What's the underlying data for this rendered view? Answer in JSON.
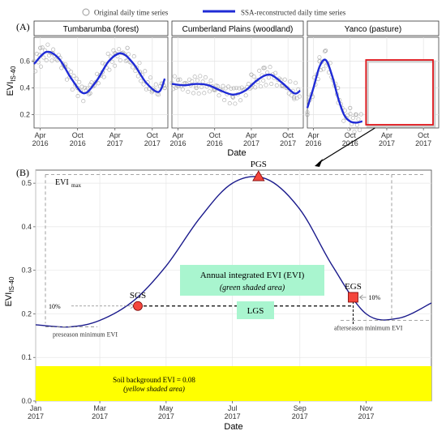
{
  "chart_data": [
    {
      "panel_label": "(A)",
      "type": "scatter",
      "legend": {
        "placement": "top",
        "entries": [
          {
            "label": "Original daily time series",
            "symbol": "open-circle",
            "color": "#b0b0b0"
          },
          {
            "label": "SSA-reconstructed daily time series",
            "symbol": "line",
            "color": "#1f2bd6"
          }
        ]
      },
      "ylabel": "EVI",
      "ylabel_sub": "IS-40",
      "xlabel": "Date",
      "ylim": [
        0.1,
        0.78
      ],
      "yticks": [
        0.2,
        0.4,
        0.6
      ],
      "xticks": [
        "Apr\n2016",
        "Oct\n2016",
        "Apr\n2017",
        "Oct\n2017"
      ],
      "grid": true,
      "facets": [
        {
          "title": "Tumbarumba (forest)",
          "reconstructed": {
            "x": [
              "2016-03",
              "2016-05",
              "2016-07",
              "2016-09",
              "2016-11",
              "2017-01",
              "2017-03",
              "2017-05",
              "2017-07",
              "2017-09",
              "2017-11",
              "2017-12"
            ],
            "y": [
              0.58,
              0.67,
              0.62,
              0.47,
              0.36,
              0.45,
              0.6,
              0.66,
              0.58,
              0.44,
              0.37,
              0.47
            ]
          },
          "observed_sample": {
            "x": [
              "2016-04",
              "2016-06",
              "2016-08",
              "2016-10",
              "2016-12",
              "2017-02",
              "2017-04",
              "2017-06",
              "2017-08",
              "2017-10",
              "2017-12"
            ],
            "y": [
              0.7,
              0.66,
              0.56,
              0.4,
              0.36,
              0.52,
              0.66,
              0.7,
              0.52,
              0.38,
              0.4
            ]
          }
        },
        {
          "title": "Cumberland Plains (woodland)",
          "reconstructed": {
            "x": [
              "2016-03",
              "2016-05",
              "2016-07",
              "2016-09",
              "2016-11",
              "2017-01",
              "2017-03",
              "2017-05",
              "2017-07",
              "2017-09",
              "2017-11",
              "2017-12"
            ],
            "y": [
              0.43,
              0.42,
              0.43,
              0.42,
              0.38,
              0.35,
              0.38,
              0.46,
              0.5,
              0.44,
              0.36,
              0.38
            ]
          },
          "observed_sample": {
            "x": [
              "2016-04",
              "2016-07",
              "2016-10",
              "2017-01",
              "2017-04",
              "2017-06",
              "2017-09",
              "2017-11"
            ],
            "y": [
              0.46,
              0.4,
              0.39,
              0.33,
              0.5,
              0.55,
              0.42,
              0.33
            ]
          }
        },
        {
          "title": "Yanco (pasture)",
          "reconstructed": {
            "x": [
              "2016-03",
              "2016-04",
              "2016-05",
              "2016-06",
              "2016-07",
              "2016-08",
              "2016-09",
              "2016-10",
              "2016-11",
              "2016-12"
            ],
            "y": [
              0.25,
              0.4,
              0.56,
              0.61,
              0.5,
              0.33,
              0.2,
              0.15,
              0.14,
              0.15
            ]
          },
          "observed_sample": {
            "x": [
              "2016-03",
              "2016-05",
              "2016-06",
              "2016-08",
              "2016-10",
              "2016-11"
            ],
            "y": [
              0.2,
              0.6,
              0.68,
              0.4,
              0.25,
              0.2
            ]
          }
        }
      ]
    },
    {
      "panel_label": "(B)",
      "type": "line",
      "title": "",
      "xlabel": "Date",
      "ylabel": "EVI",
      "ylabel_sub": "IS-40",
      "ylim": [
        0.0,
        0.53
      ],
      "yticks": [
        0.0,
        0.1,
        0.2,
        0.3,
        0.4,
        0.5
      ],
      "xticks": [
        "Jan\n2017",
        "Mar\n2017",
        "May\n2017",
        "Jul\n2017",
        "Sep\n2017",
        "Nov\n2017"
      ],
      "grid": true,
      "series": [
        {
          "color": "#1a1a8c",
          "x": [
            "2017-01-01",
            "2017-02-01",
            "2017-03-01",
            "2017-04-01",
            "2017-05-01",
            "2017-06-01",
            "2017-07-01",
            "2017-08-01",
            "2017-09-01",
            "2017-10-01",
            "2017-11-01",
            "2017-12-01",
            "2017-12-31"
          ],
          "y": [
            0.175,
            0.17,
            0.185,
            0.23,
            0.31,
            0.42,
            0.5,
            0.51,
            0.44,
            0.31,
            0.2,
            0.19,
            0.225
          ]
        }
      ],
      "annotations": {
        "evi_max_label": "EVI",
        "evi_max_sub": "max",
        "pgs": {
          "label": "PGS",
          "date": "2017-07-25",
          "value": 0.515
        },
        "sgs": {
          "label": "SGS",
          "date": "2017-04-05",
          "value": 0.218
        },
        "egs": {
          "label": "EGS",
          "date": "2017-10-20",
          "value": 0.238
        },
        "lgs_label": "LGS",
        "ten_pct_left": "10%",
        "ten_pct_right": "10%",
        "preseason_label": "preseason minimum EVI",
        "afterseason_label": "afterseason minimum EVI",
        "integrated_title": "Annual integrated EVI (EVI)",
        "integrated_sub": "(green shaded area)",
        "soil_title": "Soil background EVI = 0.08",
        "soil_sub": "(yellow shaded area)",
        "soil_value": 0.08
      }
    }
  ]
}
